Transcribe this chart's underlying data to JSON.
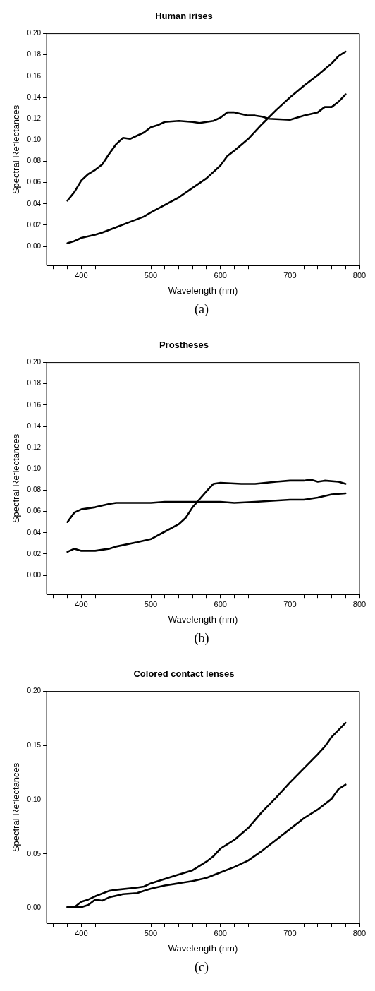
{
  "chart_data": [
    {
      "type": "line",
      "title": "Human irises",
      "xlabel": "Wavelength (nm)",
      "ylabel": "Spectral Reflectances",
      "annotations": [
        "(a)"
      ],
      "grid": false,
      "legend": false,
      "marker": "none",
      "line_style": "solid",
      "xlim": [
        350,
        800
      ],
      "xticks": [
        {
          "value": 360,
          "label": null
        },
        {
          "value": 380,
          "label": null
        },
        400,
        {
          "value": 420,
          "label": null
        },
        {
          "value": 440,
          "label": null
        },
        {
          "value": 460,
          "label": null
        },
        {
          "value": 480,
          "label": null
        },
        500,
        {
          "value": 520,
          "label": null
        },
        {
          "value": 540,
          "label": null
        },
        {
          "value": 560,
          "label": null
        },
        {
          "value": 580,
          "label": null
        },
        600,
        {
          "value": 620,
          "label": null
        },
        {
          "value": 640,
          "label": null
        },
        {
          "value": 660,
          "label": null
        },
        {
          "value": 680,
          "label": null
        },
        700,
        {
          "value": 720,
          "label": null
        },
        {
          "value": 740,
          "label": null
        },
        {
          "value": 760,
          "label": null
        },
        {
          "value": 780,
          "label": null
        },
        800
      ],
      "ylim": [
        -0.018,
        0.2
      ],
      "yticks": [
        {
          "value": 0,
          "label": "0.00"
        },
        {
          "value": 0.02,
          "label": "0.02"
        },
        {
          "value": 0.04,
          "label": "0.04"
        },
        {
          "value": 0.06,
          "label": "0.06"
        },
        {
          "value": 0.08,
          "label": "0.08"
        },
        {
          "value": 0.1,
          "label": "0.10"
        },
        {
          "value": 0.12,
          "label": "0.12"
        },
        {
          "value": 0.14,
          "label": "0.14"
        },
        {
          "value": 0.16,
          "label": "0.16"
        },
        {
          "value": 0.18,
          "label": "0.18"
        },
        {
          "value": 0.2,
          "label": "0.20"
        }
      ],
      "series": [
        {
          "color": "#000000",
          "x": [
            380,
            390,
            400,
            410,
            420,
            430,
            440,
            450,
            460,
            470,
            480,
            490,
            500,
            510,
            520,
            540,
            560,
            570,
            590,
            600,
            610,
            620,
            640,
            650,
            660,
            670,
            700,
            720,
            740,
            750,
            760,
            770,
            780
          ],
          "values": [
            0.043,
            0.051,
            0.062,
            0.068,
            0.072,
            0.077,
            0.087,
            0.096,
            0.102,
            0.101,
            0.104,
            0.107,
            0.112,
            0.114,
            0.117,
            0.118,
            0.117,
            0.116,
            0.118,
            0.121,
            0.126,
            0.126,
            0.123,
            0.123,
            0.122,
            0.12,
            0.119,
            0.123,
            0.126,
            0.131,
            0.131,
            0.136,
            0.143
          ]
        },
        {
          "color": "#000000",
          "x": [
            380,
            390,
            400,
            420,
            430,
            450,
            470,
            490,
            500,
            520,
            540,
            560,
            580,
            600,
            610,
            620,
            640,
            660,
            680,
            700,
            720,
            740,
            760,
            770,
            780
          ],
          "values": [
            0.003,
            0.005,
            0.008,
            0.011,
            0.013,
            0.018,
            0.023,
            0.028,
            0.032,
            0.039,
            0.046,
            0.055,
            0.064,
            0.076,
            0.085,
            0.09,
            0.101,
            0.115,
            0.128,
            0.14,
            0.151,
            0.161,
            0.172,
            0.179,
            0.183
          ]
        }
      ]
    },
    {
      "type": "line",
      "title": "Prostheses",
      "xlabel": "Wavelength (nm)",
      "ylabel": "Spectral Reflectances",
      "annotations": [
        "(b)"
      ],
      "grid": false,
      "legend": false,
      "marker": "none",
      "line_style": "solid",
      "xlim": [
        350,
        800
      ],
      "xticks": [
        {
          "value": 360,
          "label": null
        },
        {
          "value": 380,
          "label": null
        },
        400,
        {
          "value": 420,
          "label": null
        },
        {
          "value": 440,
          "label": null
        },
        {
          "value": 460,
          "label": null
        },
        {
          "value": 480,
          "label": null
        },
        500,
        {
          "value": 520,
          "label": null
        },
        {
          "value": 540,
          "label": null
        },
        {
          "value": 560,
          "label": null
        },
        {
          "value": 580,
          "label": null
        },
        600,
        {
          "value": 620,
          "label": null
        },
        {
          "value": 640,
          "label": null
        },
        {
          "value": 660,
          "label": null
        },
        {
          "value": 680,
          "label": null
        },
        700,
        {
          "value": 720,
          "label": null
        },
        {
          "value": 740,
          "label": null
        },
        {
          "value": 760,
          "label": null
        },
        {
          "value": 780,
          "label": null
        },
        800
      ],
      "ylim": [
        -0.018,
        0.2
      ],
      "yticks": [
        {
          "value": 0,
          "label": "0.00"
        },
        {
          "value": 0.02,
          "label": "0.02"
        },
        {
          "value": 0.04,
          "label": "0.04"
        },
        {
          "value": 0.06,
          "label": "0.06"
        },
        {
          "value": 0.08,
          "label": "0.08"
        },
        {
          "value": 0.1,
          "label": "0.10"
        },
        {
          "value": 0.12,
          "label": "0.12"
        },
        {
          "value": 0.14,
          "label": "0.14"
        },
        {
          "value": 0.16,
          "label": "0.16"
        },
        {
          "value": 0.18,
          "label": "0.18"
        },
        {
          "value": 0.2,
          "label": "0.20"
        }
      ],
      "series": [
        {
          "color": "#000000",
          "x": [
            380,
            390,
            400,
            420,
            440,
            450,
            500,
            520,
            560,
            600,
            620,
            650,
            700,
            720,
            740,
            760,
            780
          ],
          "values": [
            0.05,
            0.059,
            0.062,
            0.064,
            0.067,
            0.068,
            0.068,
            0.069,
            0.069,
            0.069,
            0.068,
            0.069,
            0.071,
            0.071,
            0.073,
            0.076,
            0.077
          ]
        },
        {
          "color": "#000000",
          "x": [
            380,
            390,
            400,
            420,
            440,
            450,
            480,
            500,
            520,
            540,
            550,
            560,
            580,
            590,
            600,
            630,
            650,
            680,
            700,
            720,
            730,
            740,
            750,
            770,
            780
          ],
          "values": [
            0.022,
            0.025,
            0.023,
            0.023,
            0.025,
            0.027,
            0.031,
            0.034,
            0.041,
            0.048,
            0.054,
            0.064,
            0.079,
            0.086,
            0.087,
            0.086,
            0.086,
            0.088,
            0.089,
            0.089,
            0.09,
            0.088,
            0.089,
            0.088,
            0.086
          ]
        }
      ]
    },
    {
      "type": "line",
      "title": "Colored contact lenses",
      "xlabel": "Wavelength (nm)",
      "ylabel": "Spectral Reflectances",
      "annotations": [
        "(c)"
      ],
      "grid": false,
      "legend": false,
      "marker": "none",
      "line_style": "solid",
      "xlim": [
        350,
        800
      ],
      "xticks": [
        {
          "value": 360,
          "label": null
        },
        {
          "value": 380,
          "label": null
        },
        400,
        {
          "value": 420,
          "label": null
        },
        {
          "value": 440,
          "label": null
        },
        {
          "value": 460,
          "label": null
        },
        {
          "value": 480,
          "label": null
        },
        500,
        {
          "value": 520,
          "label": null
        },
        {
          "value": 540,
          "label": null
        },
        {
          "value": 560,
          "label": null
        },
        {
          "value": 580,
          "label": null
        },
        600,
        {
          "value": 620,
          "label": null
        },
        {
          "value": 640,
          "label": null
        },
        {
          "value": 660,
          "label": null
        },
        {
          "value": 680,
          "label": null
        },
        700,
        {
          "value": 720,
          "label": null
        },
        {
          "value": 740,
          "label": null
        },
        {
          "value": 760,
          "label": null
        },
        {
          "value": 780,
          "label": null
        },
        800
      ],
      "ylim": [
        -0.014,
        0.2
      ],
      "yticks": [
        {
          "value": 0,
          "label": "0.00"
        },
        {
          "value": 0.05,
          "label": "0.05"
        },
        {
          "value": 0.1,
          "label": "0.10"
        },
        {
          "value": 0.15,
          "label": "0.15"
        },
        {
          "value": 0.2,
          "label": "0.20"
        }
      ],
      "series": [
        {
          "color": "#000000",
          "x": [
            380,
            390,
            400,
            410,
            420,
            440,
            450,
            480,
            490,
            500,
            520,
            540,
            560,
            580,
            590,
            600,
            620,
            640,
            660,
            680,
            700,
            720,
            740,
            750,
            760,
            780
          ],
          "values": [
            0.001,
            0.001,
            0.006,
            0.008,
            0.011,
            0.016,
            0.017,
            0.019,
            0.02,
            0.023,
            0.027,
            0.031,
            0.035,
            0.043,
            0.048,
            0.055,
            0.063,
            0.074,
            0.089,
            0.102,
            0.116,
            0.129,
            0.142,
            0.149,
            0.158,
            0.171
          ]
        },
        {
          "color": "#000000",
          "x": [
            380,
            400,
            410,
            420,
            430,
            440,
            460,
            480,
            500,
            520,
            540,
            560,
            580,
            600,
            620,
            640,
            660,
            680,
            700,
            720,
            740,
            760,
            770,
            780
          ],
          "values": [
            0.001,
            0.001,
            0.003,
            0.008,
            0.007,
            0.01,
            0.013,
            0.014,
            0.018,
            0.021,
            0.023,
            0.025,
            0.028,
            0.033,
            0.038,
            0.044,
            0.053,
            0.063,
            0.073,
            0.083,
            0.091,
            0.101,
            0.11,
            0.114
          ]
        }
      ]
    }
  ]
}
